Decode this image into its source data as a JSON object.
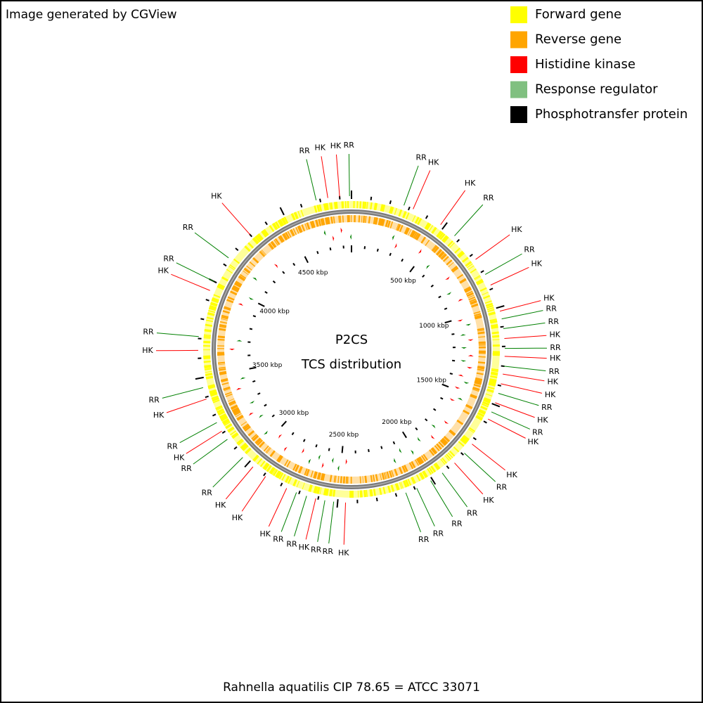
{
  "header": {
    "credit": "Image generated by CGView",
    "title": "P2CS",
    "subtitle": "TCS distribution",
    "organism": "Rahnella aquatilis CIP 78.65 = ATCC 33071"
  },
  "legend": [
    {
      "label": "Forward gene",
      "color": "#ffff00"
    },
    {
      "label": "Reverse gene",
      "color": "#ffa500"
    },
    {
      "label": "Histidine kinase",
      "color": "#ff0000"
    },
    {
      "label": "Response regulator",
      "color": "#80c080"
    },
    {
      "label": "Phosphotransfer protein",
      "color": "#000000"
    }
  ],
  "map": {
    "kbp_range": [
      0,
      4860
    ],
    "label_colors": {
      "HK": "#ff0000",
      "RR": "#008000"
    },
    "ticks": [
      0,
      100,
      200,
      300,
      400,
      {
        "value": 500,
        "label": "500 kbp"
      },
      600,
      700,
      800,
      900,
      {
        "value": 1000,
        "label": "1000 kbp"
      },
      1100,
      1200,
      1300,
      1400,
      {
        "value": 1500,
        "label": "1500 kbp"
      },
      1600,
      1700,
      1800,
      1900,
      {
        "value": 2000,
        "label": "2000 kbp"
      },
      2100,
      2200,
      2300,
      2400,
      {
        "value": 2500,
        "label": "2500 kbp"
      },
      2600,
      2700,
      2800,
      2900,
      {
        "value": 3000,
        "label": "3000 kbp"
      },
      3100,
      3200,
      3300,
      3400,
      {
        "value": 3500,
        "label": "3500 kbp"
      },
      3600,
      3700,
      3800,
      3900,
      {
        "value": 4000,
        "label": "4000 kbp"
      },
      4100,
      4200,
      4300,
      4400,
      {
        "value": 4500,
        "label": "4500 kbp"
      },
      4600,
      4700,
      4800
    ],
    "features": [
      {
        "label": "RR",
        "kbp": 270
      },
      {
        "label": "HK",
        "kbp": 320
      },
      {
        "label": "HK",
        "kbp": 480
      },
      {
        "label": "RR",
        "kbp": 570
      },
      {
        "label": "HK",
        "kbp": 730
      },
      {
        "label": "RR",
        "kbp": 820
      },
      {
        "label": "HK",
        "kbp": 880
      },
      {
        "label": "HK",
        "kbp": 1020
      },
      {
        "label": "RR",
        "kbp": 1060
      },
      {
        "label": "RR",
        "kbp": 1110
      },
      {
        "label": "HK",
        "kbp": 1160
      },
      {
        "label": "RR",
        "kbp": 1210
      },
      {
        "label": "HK",
        "kbp": 1250
      },
      {
        "label": "RR",
        "kbp": 1300
      },
      {
        "label": "HK",
        "kbp": 1340
      },
      {
        "label": "HK",
        "kbp": 1390
      },
      {
        "label": "RR",
        "kbp": 1440
      },
      {
        "label": "HK",
        "kbp": 1490
      },
      {
        "label": "RR",
        "kbp": 1540
      },
      {
        "label": "HK",
        "kbp": 1580
      },
      {
        "label": "HK",
        "kbp": 1730
      },
      {
        "label": "RR",
        "kbp": 1790
      },
      {
        "label": "HK",
        "kbp": 1860
      },
      {
        "label": "RR",
        "kbp": 1940
      },
      {
        "label": "RR",
        "kbp": 2010
      },
      {
        "label": "RR",
        "kbp": 2090
      },
      {
        "label": "RR",
        "kbp": 2150
      },
      {
        "label": "HK",
        "kbp": 2460
      },
      {
        "label": "RR",
        "kbp": 2520
      },
      {
        "label": "RR",
        "kbp": 2565
      },
      {
        "label": "HK",
        "kbp": 2612
      },
      {
        "label": "RR",
        "kbp": 2660
      },
      {
        "label": "RR",
        "kbp": 2714
      },
      {
        "label": "HK",
        "kbp": 2768
      },
      {
        "label": "HK",
        "kbp": 2890
      },
      {
        "label": "HK",
        "kbp": 2970
      },
      {
        "label": "RR",
        "kbp": 3040
      },
      {
        "label": "RR",
        "kbp": 3160
      },
      {
        "label": "HK",
        "kbp": 3210
      },
      {
        "label": "RR",
        "kbp": 3260
      },
      {
        "label": "HK",
        "kbp": 3390
      },
      {
        "label": "RR",
        "kbp": 3450
      },
      {
        "label": "HK",
        "kbp": 3640
      },
      {
        "label": "RR",
        "kbp": 3710
      },
      {
        "label": "HK",
        "kbp": 3950
      },
      {
        "label": "RR",
        "kbp": 4000
      },
      {
        "label": "RR",
        "kbp": 4140
      },
      {
        "label": "HK",
        "kbp": 4300
      },
      {
        "label": "RR",
        "kbp": 4680
      },
      {
        "label": "HK",
        "kbp": 4740
      },
      {
        "label": "HK",
        "kbp": 4800
      },
      {
        "label": "RR",
        "kbp": 4850
      }
    ]
  }
}
